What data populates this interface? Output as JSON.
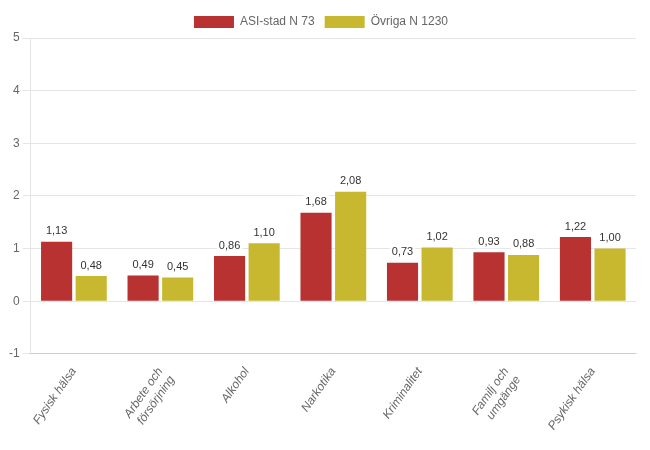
{
  "chart_data": {
    "type": "bar",
    "categories": [
      "Fysisk hälsa",
      "Arbete och\nförsörjning",
      "Alkohol",
      "Narkotika",
      "Kriminalitet",
      "Familj och\numgänge",
      "Psykisk hälsa"
    ],
    "series": [
      {
        "name": "ASI-stad N 73",
        "color": "#B83232",
        "values": [
          1.13,
          0.49,
          0.86,
          1.68,
          0.73,
          0.93,
          1.22
        ],
        "value_labels": [
          "1,13",
          "0,49",
          "0,86",
          "1,68",
          "0,73",
          "0,93",
          "1,22"
        ]
      },
      {
        "name": "Övriga N 1230",
        "color": "#C8B830",
        "values": [
          0.48,
          0.45,
          1.1,
          2.08,
          1.02,
          0.88,
          1.0
        ],
        "value_labels": [
          "0,48",
          "0,45",
          "1,10",
          "2,08",
          "1,02",
          "0,88",
          "1,00"
        ]
      }
    ],
    "ylim": [
      -1,
      5
    ],
    "yticks": [
      -1,
      0,
      1,
      2,
      3,
      4,
      5
    ],
    "grid": true,
    "legend": "top",
    "data_labels": true
  }
}
